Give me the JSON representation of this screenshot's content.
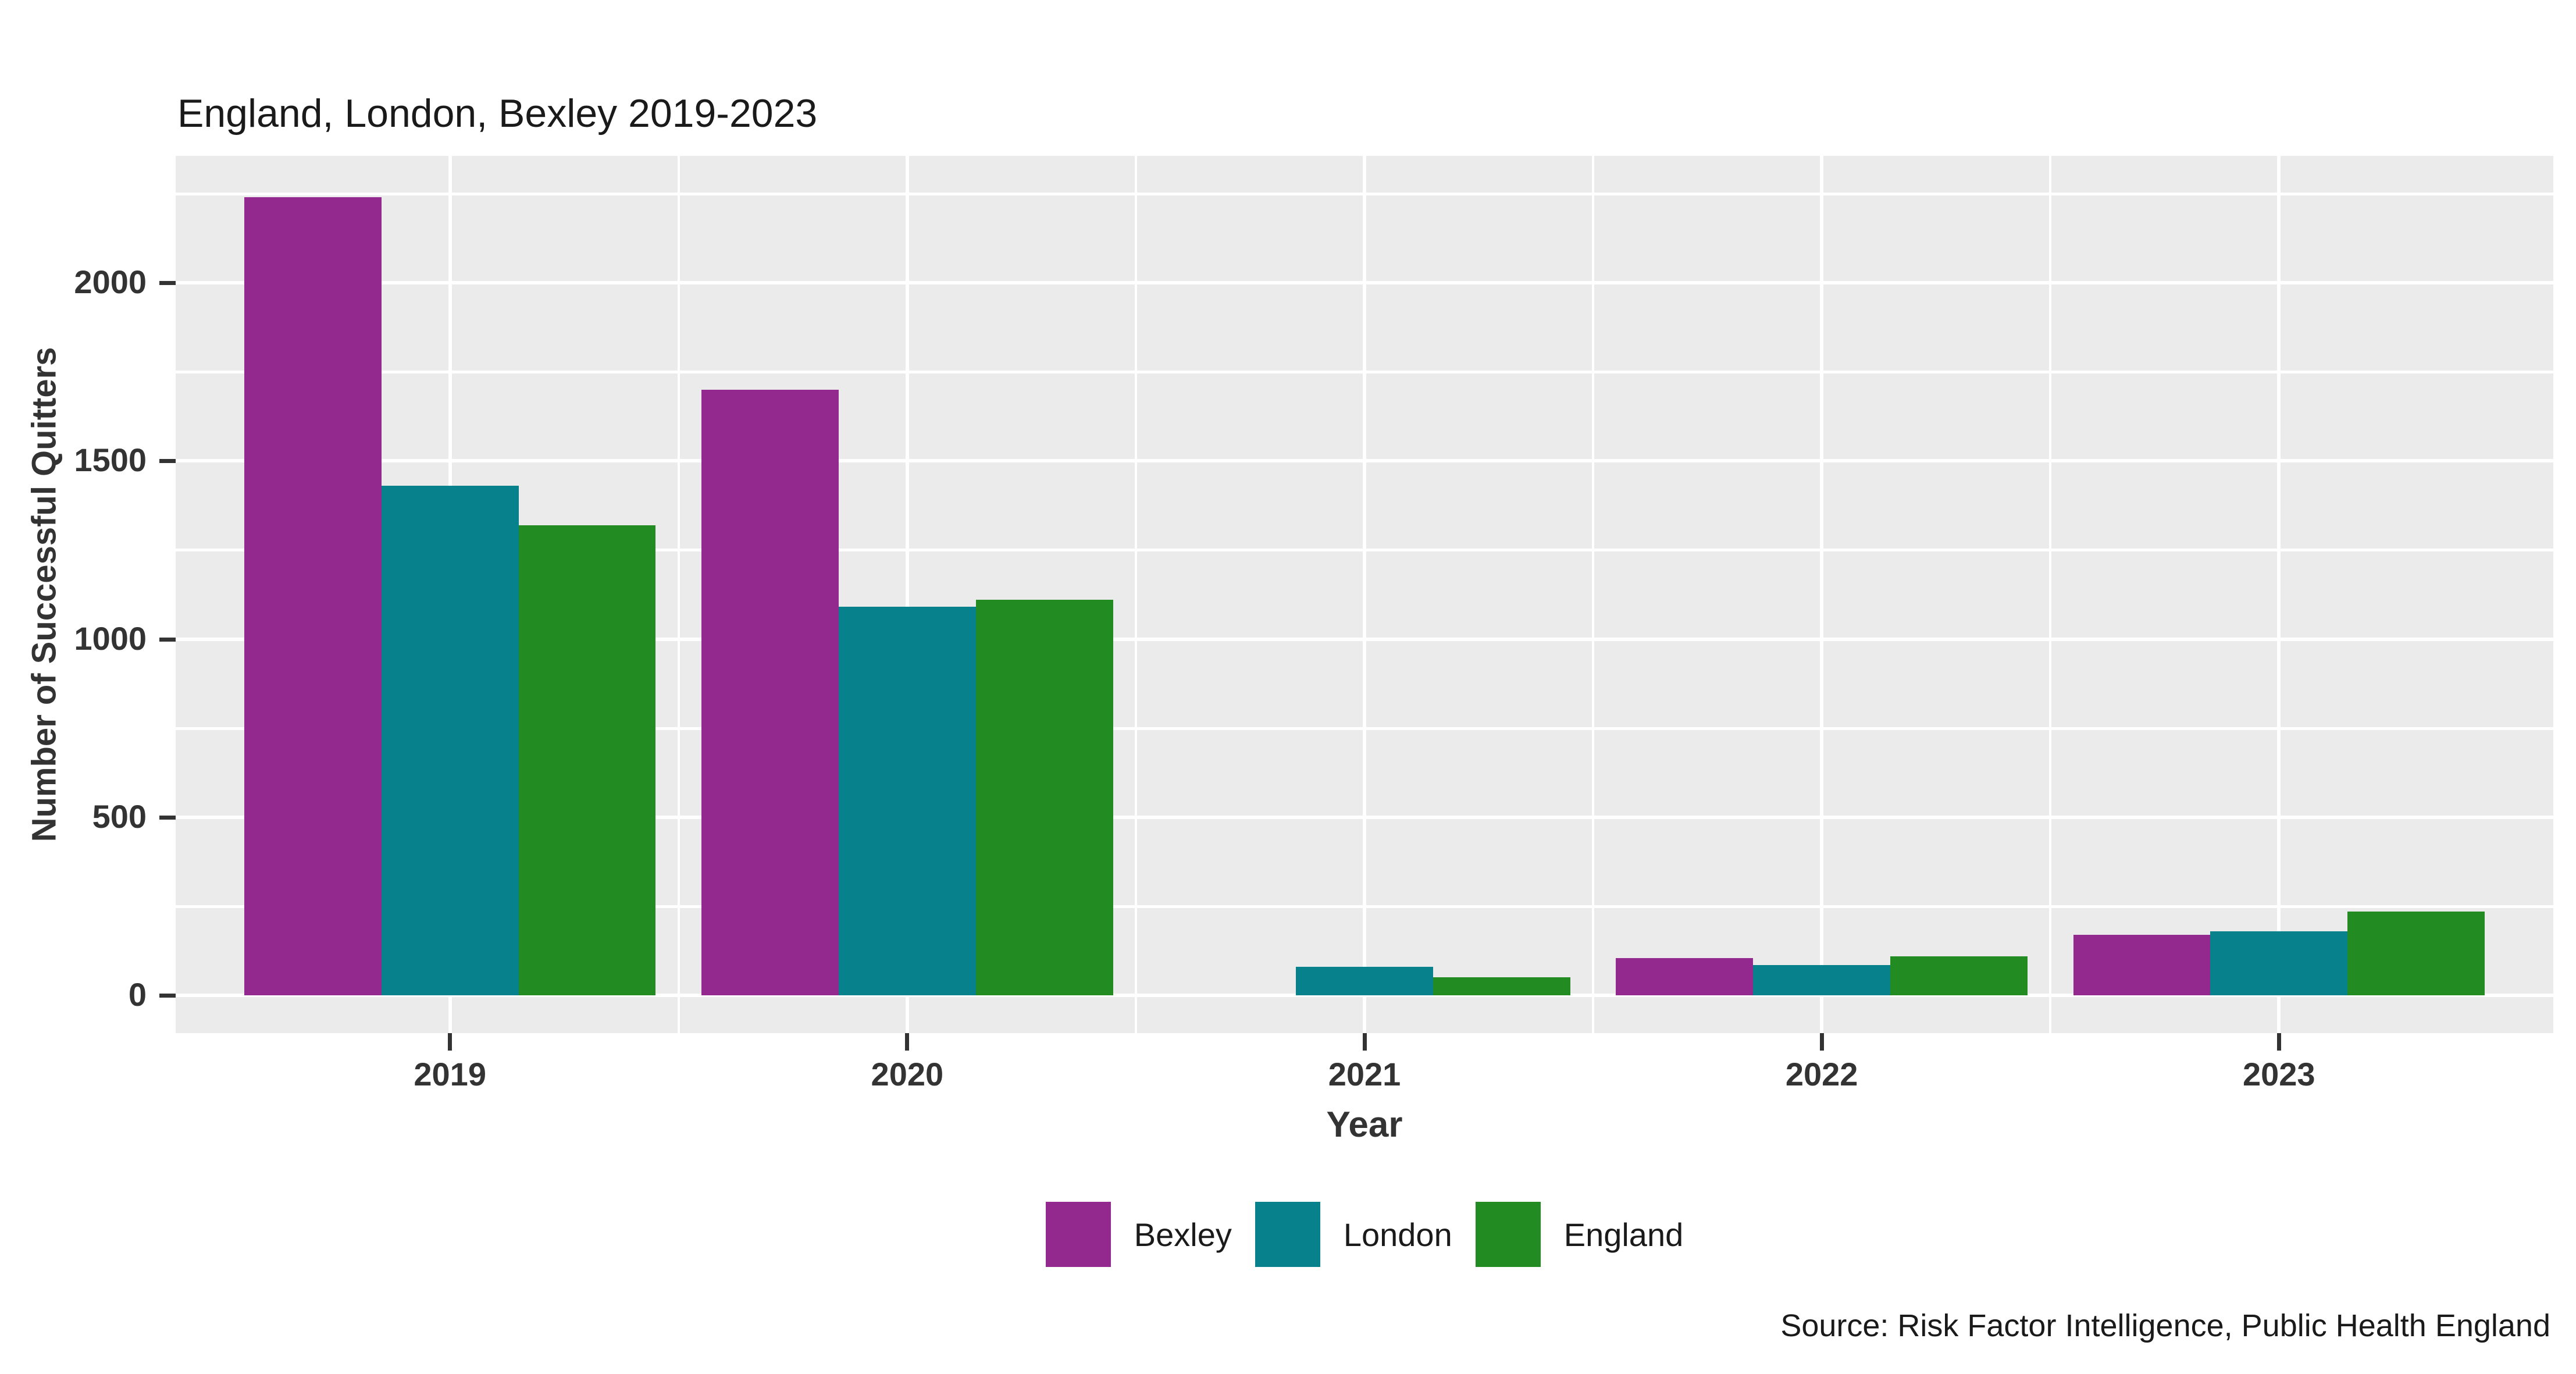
{
  "title": "England, London, Bexley 2019-2023",
  "axes": {
    "x_label": "Year",
    "y_label": "Number of Successful Quitters"
  },
  "caption": "Source: Risk Factor Intelligence, Public Health England",
  "panel": {
    "background_color": "#EBEBEB",
    "gridline_color": "#FFFFFF",
    "axis_text_color": "#333333",
    "title_text_color": "#1A1A1A"
  },
  "chart_data": {
    "type": "bar",
    "title": "England, London, Bexley 2019-2023",
    "xlabel": "Year",
    "ylabel": "Number of Successful Quitters",
    "caption": "Source: Risk Factor Intelligence, Public Health England",
    "categories": [
      "2019",
      "2020",
      "2021",
      "2022",
      "2023"
    ],
    "series": [
      {
        "name": "Bexley",
        "color": "#93298E",
        "values": [
          2240,
          1700,
          0,
          105,
          170
        ]
      },
      {
        "name": "London",
        "color": "#07818B",
        "values": [
          1430,
          1090,
          80,
          85,
          180
        ]
      },
      {
        "name": "England",
        "color": "#228B22",
        "values": [
          1320,
          1110,
          50,
          110,
          235
        ]
      }
    ],
    "ylim": [
      0,
      2250
    ],
    "yticks": [
      0,
      500,
      1000,
      1500,
      2000
    ],
    "minor_step": 250,
    "grid": true,
    "legend_position": "bottom"
  }
}
